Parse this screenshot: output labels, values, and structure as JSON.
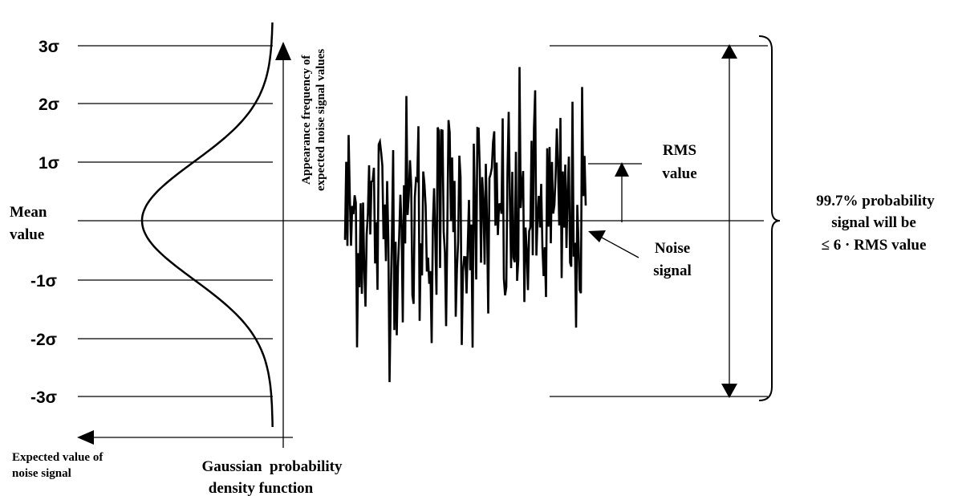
{
  "sigma_levels": [
    "3σ",
    "2σ",
    "1σ",
    "-1σ",
    "-2σ",
    "-3σ"
  ],
  "labels": {
    "mean_line1": "Mean",
    "mean_line2": "value",
    "freq_line1": "Appearance frequency of",
    "freq_line2": "expected noise signal values",
    "expected_line1": "Expected value of",
    "expected_line2": "noise signal",
    "gaussian_line1": "Gaussian  probability",
    "gaussian_line2": "density function",
    "rms_line1": "RMS",
    "rms_line2": "value",
    "noise_line1": "Noise",
    "noise_line2": "signal",
    "prob_line1": "99.7% probability",
    "prob_line2": "signal will be",
    "prob_line3": "≤ 6 · RMS value"
  },
  "colors": {
    "ink": "#000000",
    "background": "#ffffff"
  }
}
